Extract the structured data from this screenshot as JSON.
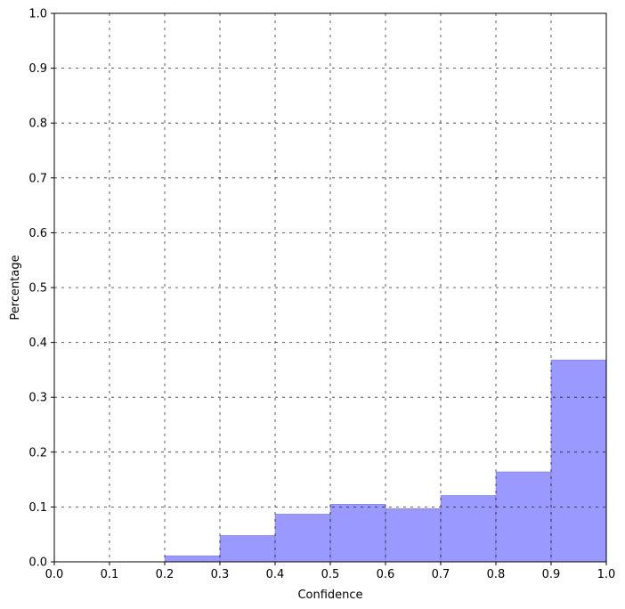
{
  "chart_data": {
    "type": "bar",
    "xlabel": "Confidence",
    "ylabel": "Percentage",
    "xlim": [
      0.0,
      1.0
    ],
    "ylim": [
      0.0,
      1.0
    ],
    "grid": true,
    "bar_color": "#9999ff",
    "bar_edge_color": "#7777cc",
    "xticks": [
      "0.0",
      "0.1",
      "0.2",
      "0.3",
      "0.4",
      "0.5",
      "0.6",
      "0.7",
      "0.8",
      "0.9",
      "1.0"
    ],
    "yticks": [
      "0.0",
      "0.1",
      "0.2",
      "0.3",
      "0.4",
      "0.5",
      "0.6",
      "0.7",
      "0.8",
      "0.9",
      "1.0"
    ],
    "bins": [
      {
        "x0": 0.0,
        "x1": 0.1,
        "value": 0.0
      },
      {
        "x0": 0.1,
        "x1": 0.2,
        "value": 0.0
      },
      {
        "x0": 0.2,
        "x1": 0.3,
        "value": 0.011
      },
      {
        "x0": 0.3,
        "x1": 0.4,
        "value": 0.048
      },
      {
        "x0": 0.4,
        "x1": 0.5,
        "value": 0.087
      },
      {
        "x0": 0.5,
        "x1": 0.6,
        "value": 0.105
      },
      {
        "x0": 0.6,
        "x1": 0.7,
        "value": 0.097
      },
      {
        "x0": 0.7,
        "x1": 0.8,
        "value": 0.121
      },
      {
        "x0": 0.8,
        "x1": 0.9,
        "value": 0.164
      },
      {
        "x0": 0.9,
        "x1": 1.0,
        "value": 0.368
      }
    ]
  }
}
